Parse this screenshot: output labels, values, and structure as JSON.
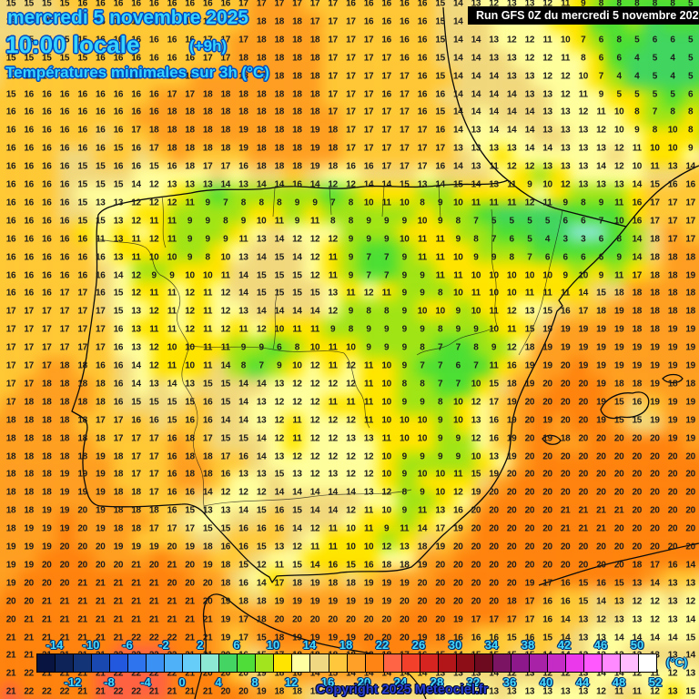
{
  "header": {
    "date_line": "mercredi 5 novembre 2025",
    "time_line": "10:00 locale",
    "time_suffix": "(+9h)",
    "subtitle": "Températures minimales sur 3h (°C)"
  },
  "run_box": {
    "label": "Run GFS 0Z du mercredi 5 novembre 2025"
  },
  "copyright": "Copyright 2025 Meteociel.fr",
  "legend": {
    "unit": "(°C)",
    "value_min": -16,
    "value_step": 2,
    "top_labels": [
      -14,
      -10,
      -6,
      -2,
      2,
      6,
      10,
      14,
      18,
      22,
      26,
      30,
      34,
      38,
      42,
      46,
      50
    ],
    "bottom_labels": [
      -12,
      -8,
      -4,
      0,
      4,
      8,
      12,
      16,
      20,
      24,
      28,
      32,
      36,
      40,
      44,
      48,
      52
    ],
    "palette": [
      "#0a1440",
      "#0e2458",
      "#143478",
      "#1848b0",
      "#2158de",
      "#2d74ee",
      "#3b92f4",
      "#4fb2f8",
      "#66ccf8",
      "#8ce8d2",
      "#44d464",
      "#4fdd3a",
      "#a2e41e",
      "#ffe400",
      "#ffffa2",
      "#f0d882",
      "#ffc83c",
      "#ffa028",
      "#ff8414",
      "#ff6444",
      "#f2402a",
      "#d62420",
      "#b21618",
      "#8d0e16",
      "#6e0a20",
      "#7c1464",
      "#8c188c",
      "#a822a8",
      "#c52cc5",
      "#ea38ea",
      "#ff58ff",
      "#ff8aff",
      "#ffbcff",
      "#ffffff"
    ]
  },
  "grid": {
    "cols": 39,
    "rows": 39,
    "col_origin": 12,
    "row_origin": 4,
    "col_step": 19.65,
    "row_step": 19.9,
    "values": [
      "15 15 15 15 16 16 16 16 16 16 16 16 16 17 17 17 17 17 17 16 16 16 16 16 15 14 13 12 13 13 12 11 9 8 8 8 8 8 5",
      "15 15 15 15 16 16 16 16 16 16 16 17 17 17 18 18 18 17 17 17 16 16 16 16 15 14 13 13 12 12 12 11 8 7 7 6 6 6 5",
      "15 15 15 15 15 16 16 16 16 16 16 17 17 17 18 18 18 18 17 17 17 16 16 16 15 14 14 13 12 12 11 10 7 6 8 5 6 6 5",
      "15 15 15 15 15 16 16 16 16 16 16 17 17 18 18 18 18 18 17 17 17 17 16 16 15 14 14 13 13 12 12 11 8 6 6 4 5 4 5",
      "15 16 16 16 16 16 16 16 16 16 16 17 17 18 18 18 18 18 17 17 17 17 17 16 15 14 14 14 13 13 12 12 10 7 4 4 5 4 5",
      "15 16 16 16 16 16 16 16 16 17 17 18 18 18 18 18 18 18 17 17 17 16 17 16 16 14 14 14 14 13 13 12 11 9 5 5 5 5 6",
      "16 16 16 16 16 16 16 16 16 18 18 18 18 18 18 18 18 18 17 17 17 17 17 16 15 14 14 14 14 14 13 13 12 11 10 8 7 8 8",
      "16 16 16 16 16 16 16 17 18 18 18 18 18 19 18 18 18 19 18 17 17 17 17 17 16 14 13 14 14 14 13 13 13 12 10 9 8 10 8",
      "16 16 16 16 16 16 15 16 17 18 18 18 18 19 18 18 18 19 18 17 17 17 17 17 17 13 13 13 13 14 14 13 13 13 12 11 10 10 9",
      "16 16 16 16 15 15 16 16 15 16 18 17 17 16 18 18 18 19 18 16 16 17 17 17 16 14 13 11 12 12 13 13 13 14 12 10 11 13 14",
      "16 16 16 16 15 15 15 14 12 13 13 13 14 13 14 14 16 14 12 12 14 14 15 13 14 15 14 13 11 9 10 12 13 13 13 14 15 16 16",
      "16 16 16 16 15 13 13 12 12 12 11 9 7 8 8 8 9 9 7 8 10 11 10 8 9 10 11 11 11 12 11 9 8 9 11 16 17 17 17",
      "16 16 16 16 15 15 13 12 11 11 9 9 8 9 10 11 9 11 8 8 9 9 9 10 9 8 7 5 5 5 5 6 6 7 10 16 17 17 17",
      "16 16 16 16 16 11 13 11 12 11 9 9 9 11 13 14 12 12 12 9 9 9 10 11 11 9 8 7 6 5 4 3 3 6 8 14 18 17 17",
      "16 16 16 16 16 16 13 11 10 10 9 8 10 13 14 15 14 12 11 9 7 7 9 11 11 10 9 9 8 7 6 6 6 6 9 14 18 18 18",
      "16 16 16 16 16 16 14 12 9 9 10 10 11 14 15 15 15 12 11 9 7 7 9 9 11 11 10 10 10 10 10 9 10 9 11 17 18 18 19",
      "16 16 16 17 17 16 15 12 11 11 12 11 12 14 15 15 15 15 13 11 12 11 9 9 8 10 11 10 10 11 11 11 14 15 18 18 18 18 18",
      "17 17 17 17 17 17 15 13 12 11 12 11 12 13 14 14 14 14 12 9 8 8 9 10 10 9 10 11 12 13 15 16 17 18 19 18 18 18 18",
      "17 17 17 17 17 17 16 13 11 11 12 11 12 11 12 10 11 11 9 8 9 9 9 9 8 9 9 10 11 15 19 19 19 19 19 18 18 19 19",
      "17 17 17 17 17 17 16 13 12 10 10 11 11 9 9 6 8 10 11 10 9 9 9 8 7 7 8 9 12 18 19 19 19 19 19 19 19 19 19",
      "17 17 17 18 18 16 16 14 12 11 10 11 14 8 7 9 10 12 11 12 11 10 9 7 7 6 7 11 16 19 19 20 19 19 19 19 19 19 19",
      "17 17 18 18 18 18 16 14 13 14 13 15 15 14 14 13 12 12 12 12 11 10 8 8 7 7 10 15 18 19 20 20 20 19 18 18 19 18 18",
      "17 18 18 18 18 18 16 15 15 15 15 16 15 14 13 12 12 12 11 11 11 10 9 9 8 10 12 17 19 20 20 20 20 19 15 16 19 19 19",
      "18 18 18 18 18 17 17 16 16 15 16 16 14 14 13 12 11 12 12 12 11 10 10 10 9 10 13 16 19 20 19 20 20 19 15 15 19 19 19",
      "18 18 18 18 18 18 17 17 17 16 18 17 15 15 14 12 11 12 12 13 13 11 10 10 9 9 12 16 19 20 19 18 20 20 20 20 20 19 19",
      "18 18 18 18 18 19 18 17 17 16 18 18 17 16 14 13 12 12 12 12 12 10 9 9 9 9 10 13 19 20 20 20 20 20 20 20 20 20 20",
      "18 18 18 19 19 19 18 17 17 16 18 18 16 13 13 15 13 12 13 12 12 10 9 10 10 11 15 19 20 20 20 20 20 20 20 20 20 20 20",
      "18 18 18 19 19 19 18 18 17 16 16 14 12 12 12 14 14 14 14 14 13 12 8 9 10 12 19 20 20 20 20 20 20 20 20 20 20 20 20",
      "18 18 19 19 20 19 18 18 18 16 15 13 13 14 15 16 15 14 14 12 11 10 9 11 13 16 20 20 20 20 20 21 21 21 21 20 20 20 20",
      "18 19 19 19 20 19 18 18 17 17 17 15 15 16 16 16 14 12 11 10 11 9 11 14 17 19 20 20 20 20 20 21 21 21 20 20 20 20 20",
      "19 19 19 20 20 20 19 19 19 20 19 18 16 16 15 13 12 11 11 10 10 12 13 18 19 20 20 20 20 20 20 20 20 20 20 20 20 20 20",
      "19 19 20 20 20 20 20 21 20 21 20 19 18 15 12 11 15 14 16 15 16 18 18 19 20 20 20 20 20 20 20 20 20 20 20 18 17 16 14",
      "19 20 20 20 21 21 21 21 21 20 20 20 18 16 14 17 18 19 18 18 19 19 19 20 20 20 20 20 20 19 17 16 15 16 15 13 14 13 13",
      "20 20 21 21 21 21 21 21 21 21 21 20 19 18 18 19 19 19 19 19 19 19 20 20 20 20 20 20 18 17 16 16 15 14 13 12 12 13 12",
      "20 21 21 21 21 21 21 21 21 21 21 21 19 17 18 20 20 20 20 20 20 20 20 20 20 19 17 17 17 17 16 14 13 12 13 13 12 13 14",
      "21 21 21 21 21 21 21 22 22 22 21 21 19 17 15 18 19 19 19 19 20 20 20 19 18 16 16 16 15 16 15 14 13 13 14 14 14 14 15",
      "21 21 21 21 21 21 22 22 22 22 21 21 20 16 15 17 18 18 18 18 18 18 17 16 15 14 15 15 15 15 14 14 13 13 13 13 13 13 14",
      "21 22 21 21 21 21 22 22 22 22 21 20 20 20 19 18 16 14 15 14 14 14 14 14 13 13 13 14 12 13 12 12 13 14 14 12 11 12 13",
      "21 22 22 22 21 21 22 22 21 21 21 21 20 20 19 18 18 15 14 14 14 13 13 13 12 12 12 13 13 13 13 13 13 12 11 11 12 13 15"
    ]
  }
}
